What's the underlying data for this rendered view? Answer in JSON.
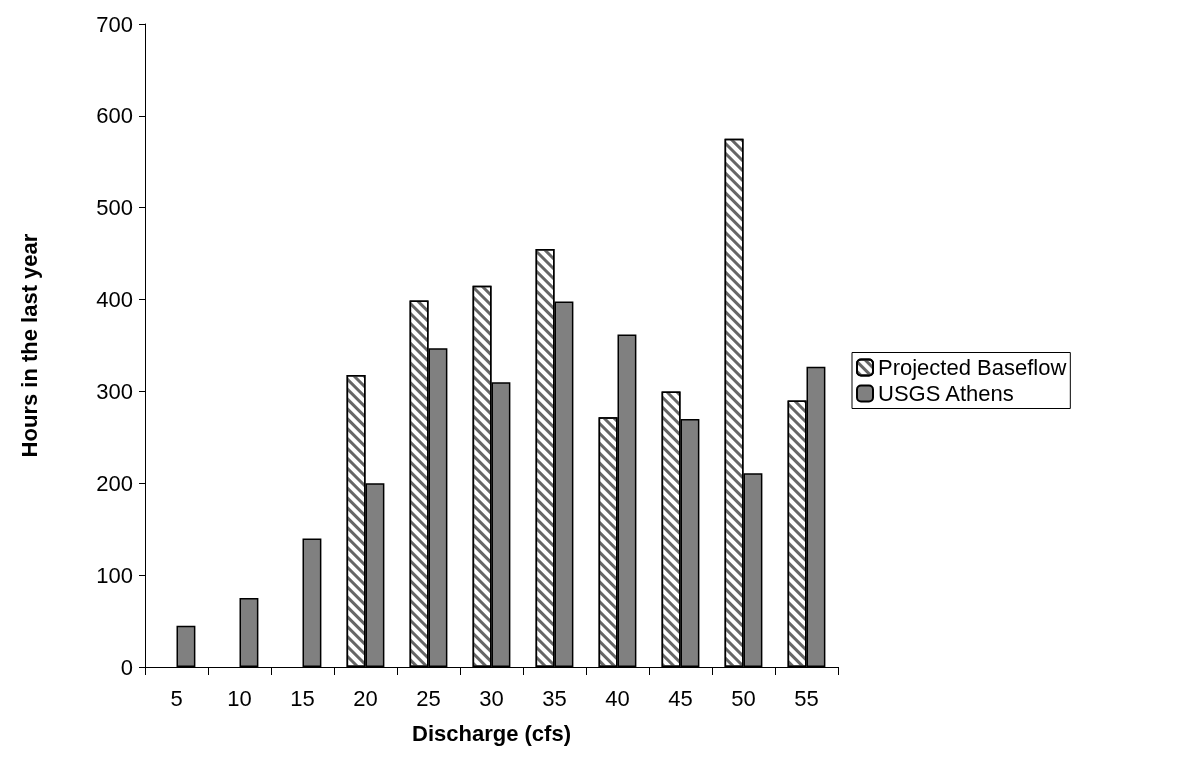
{
  "chart_data": {
    "type": "bar",
    "xlabel": "Discharge (cfs)",
    "ylabel": "Hours in the last year",
    "categories": [
      "5",
      "10",
      "15",
      "20",
      "25",
      "30",
      "35",
      "40",
      "45",
      "50",
      "55"
    ],
    "series": [
      {
        "name": "Projected Baseflow",
        "color": "#ffffff",
        "values": [
          null,
          null,
          null,
          318,
          399,
          415,
          455,
          272,
          300,
          575,
          290
        ]
      },
      {
        "name": "USGS Athens",
        "color": "#808080",
        "values": [
          45,
          75,
          140,
          200,
          347,
          310,
          398,
          362,
          270,
          211,
          327
        ]
      }
    ],
    "ylim": [
      0,
      700
    ],
    "yticks": [
      0,
      100,
      200,
      300,
      400,
      500,
      600,
      700
    ],
    "grid": false,
    "legend": "right"
  }
}
